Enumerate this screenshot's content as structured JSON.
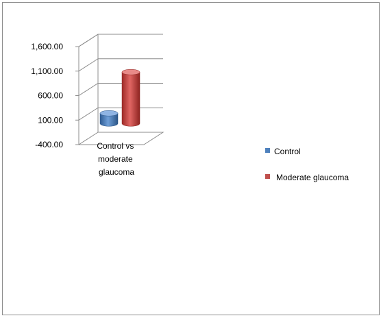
{
  "chart_data": {
    "type": "bar",
    "categories": [
      "Control vs moderate glaucoma"
    ],
    "category_label_lines": [
      "Control vs",
      "moderate",
      "glaucoma"
    ],
    "series": [
      {
        "name": "Control",
        "values": [
          240
        ],
        "color": "#4f81bd"
      },
      {
        "name": "Moderate glaucoma",
        "values": [
          1080
        ],
        "color": "#c0504d"
      }
    ],
    "y_ticks": [
      "1,600.00",
      "1,100.00",
      "600.00",
      "100.00",
      "-400.00"
    ],
    "y_tick_values": [
      1600,
      1100,
      600,
      100,
      -400
    ],
    "ylim": [
      -400,
      1600
    ],
    "grid": true,
    "legend_position": "right",
    "three_d": true
  }
}
